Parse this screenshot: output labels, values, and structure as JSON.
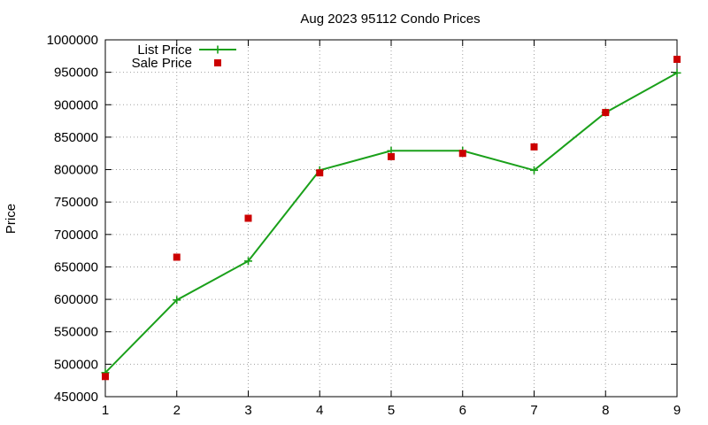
{
  "chart_data": {
    "type": "line",
    "title": "Aug 2023 95112 Condo Prices",
    "xlabel": "",
    "ylabel": "Price",
    "x": [
      1,
      2,
      3,
      4,
      5,
      6,
      7,
      8,
      9
    ],
    "x_tick_labels": [
      "1",
      "2",
      "3",
      "4",
      "5",
      "6",
      "7",
      "8",
      "9"
    ],
    "xlim": [
      1,
      9
    ],
    "ylim": [
      450000,
      1000000
    ],
    "y_tick_labels": [
      "450000",
      "500000",
      "550000",
      "600000",
      "650000",
      "700000",
      "750000",
      "800000",
      "850000",
      "900000",
      "950000",
      "1000000"
    ],
    "grid": true,
    "legend_position": "top-left",
    "series": [
      {
        "name": "List Price",
        "style": "linespoints",
        "marker": "plus",
        "color": "#1aa01a",
        "values": [
          487000,
          599000,
          659000,
          799000,
          829000,
          829000,
          799000,
          888000,
          949000
        ]
      },
      {
        "name": "Sale Price",
        "style": "points",
        "marker": "square",
        "color": "#cc0000",
        "values": [
          481000,
          665000,
          725000,
          795000,
          820000,
          825000,
          835000,
          888000,
          970000
        ]
      }
    ]
  }
}
